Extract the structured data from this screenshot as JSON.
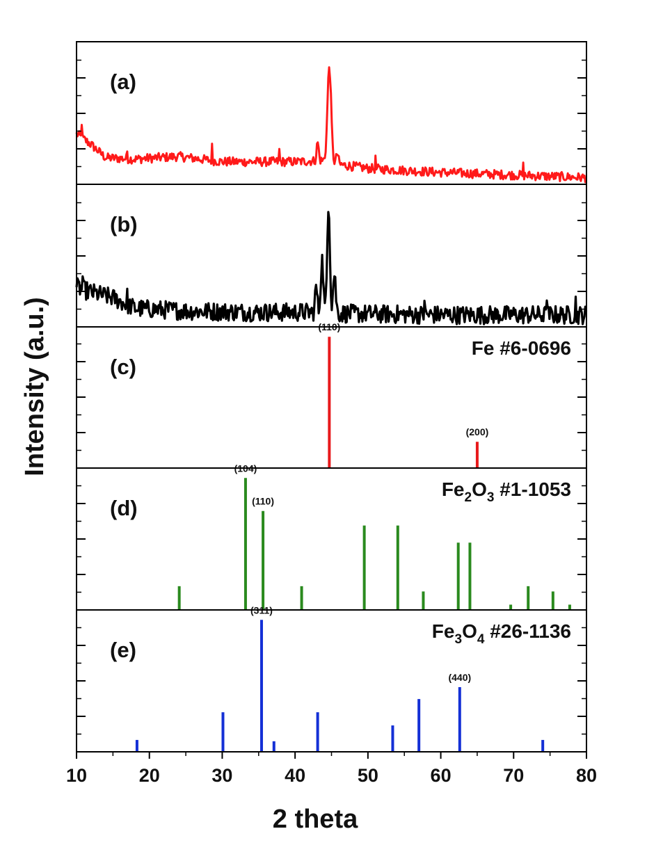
{
  "chart_data": {
    "type": "line",
    "xlabel": "2 theta",
    "ylabel": "Intensity (a.u.)",
    "xlim": [
      10,
      80
    ],
    "xticks": [
      10,
      20,
      30,
      40,
      50,
      60,
      70,
      80
    ],
    "colors": {
      "a": "#ff1a1a",
      "b": "#000000",
      "c": "#e8191b",
      "d": "#2a8a1e",
      "e": "#1430d6"
    },
    "panels": [
      {
        "id": "a",
        "label": "(a)",
        "kind": "pattern",
        "ylim": [
          0,
          100
        ],
        "series": {
          "name": "(a)",
          "peaks": [
            {
              "x": 44.7,
              "y": 72,
              "w": 0.35
            },
            {
              "x": 43.1,
              "y": 14,
              "w": 0.2
            },
            {
              "x": 45.8,
              "y": 8,
              "w": 0.2
            }
          ],
          "baseline": [
            [
              10,
              38
            ],
            [
              12,
              30
            ],
            [
              14,
              20
            ],
            [
              18,
              19
            ],
            [
              24,
              21
            ],
            [
              30,
              17
            ],
            [
              40,
              17
            ],
            [
              44,
              18
            ],
            [
              46,
              15
            ],
            [
              50,
              12
            ],
            [
              60,
              9
            ],
            [
              70,
              7
            ],
            [
              80,
              5
            ]
          ],
          "noise": 3.5,
          "spikes": [
            [
              10.7,
              12
            ],
            [
              17,
              6
            ],
            [
              28.6,
              10
            ],
            [
              37.8,
              9
            ],
            [
              51,
              7
            ],
            [
              71.3,
              7
            ]
          ]
        }
      },
      {
        "id": "b",
        "label": "(b)",
        "kind": "pattern",
        "ylim": [
          0,
          100
        ],
        "series": {
          "name": "(b)",
          "peaks": [
            {
              "x": 44.6,
              "y": 85,
              "w": 0.25
            },
            {
              "x": 43.7,
              "y": 40,
              "w": 0.25
            },
            {
              "x": 45.4,
              "y": 30,
              "w": 0.25
            },
            {
              "x": 42.9,
              "y": 20,
              "w": 0.2
            }
          ],
          "baseline": [
            [
              10,
              30
            ],
            [
              12,
              26
            ],
            [
              15,
              22
            ],
            [
              18,
              14
            ],
            [
              25,
              12
            ],
            [
              35,
              11
            ],
            [
              42,
              11
            ],
            [
              47,
              10
            ],
            [
              60,
              9
            ],
            [
              70,
              9
            ],
            [
              80,
              9
            ]
          ],
          "noise": 7,
          "spikes": [
            [
              10.8,
              10
            ],
            [
              17,
              6
            ],
            [
              36,
              8
            ],
            [
              57.8,
              13
            ],
            [
              74.5,
              10
            ],
            [
              78.5,
              10
            ]
          ]
        }
      },
      {
        "id": "c",
        "label": "(c)",
        "kind": "reference",
        "ylim": [
          0,
          100
        ],
        "title": "Fe #6-0696",
        "title_parts": [
          {
            "t": "Fe #6-0696"
          }
        ],
        "lines": [
          {
            "x": 44.7,
            "y": 100,
            "hkl": "(110)"
          },
          {
            "x": 65.0,
            "y": 20,
            "hkl": "(200)"
          }
        ]
      },
      {
        "id": "d",
        "label": "(d)",
        "kind": "reference",
        "ylim": [
          0,
          100
        ],
        "title": "Fe2O3 #1-1053",
        "title_parts": [
          {
            "t": "Fe"
          },
          {
            "t": "2",
            "sub": true
          },
          {
            "t": "O"
          },
          {
            "t": "3",
            "sub": true
          },
          {
            "t": " #1-1053"
          }
        ],
        "lines": [
          {
            "x": 24.1,
            "y": 18
          },
          {
            "x": 33.2,
            "y": 100,
            "hkl": "(104)"
          },
          {
            "x": 35.6,
            "y": 75,
            "hkl": "(110)"
          },
          {
            "x": 40.9,
            "y": 18
          },
          {
            "x": 49.5,
            "y": 64
          },
          {
            "x": 54.1,
            "y": 64
          },
          {
            "x": 57.6,
            "y": 14
          },
          {
            "x": 62.4,
            "y": 51
          },
          {
            "x": 64.0,
            "y": 51
          },
          {
            "x": 69.6,
            "y": 4
          },
          {
            "x": 72.0,
            "y": 18
          },
          {
            "x": 75.4,
            "y": 14
          },
          {
            "x": 77.7,
            "y": 4
          }
        ]
      },
      {
        "id": "e",
        "label": "(e)",
        "kind": "reference",
        "ylim": [
          0,
          100
        ],
        "title": "Fe3O4 #26-1136",
        "title_parts": [
          {
            "t": "Fe"
          },
          {
            "t": "3",
            "sub": true
          },
          {
            "t": "O"
          },
          {
            "t": "4",
            "sub": true
          },
          {
            "t": " #26-1136"
          }
        ],
        "lines": [
          {
            "x": 18.3,
            "y": 9
          },
          {
            "x": 30.1,
            "y": 30
          },
          {
            "x": 35.4,
            "y": 100,
            "hkl": "(311)"
          },
          {
            "x": 37.1,
            "y": 8
          },
          {
            "x": 43.1,
            "y": 30
          },
          {
            "x": 53.4,
            "y": 20
          },
          {
            "x": 57.0,
            "y": 40
          },
          {
            "x": 62.6,
            "y": 49,
            "hkl": "(440)"
          },
          {
            "x": 74.0,
            "y": 9
          }
        ]
      }
    ]
  }
}
